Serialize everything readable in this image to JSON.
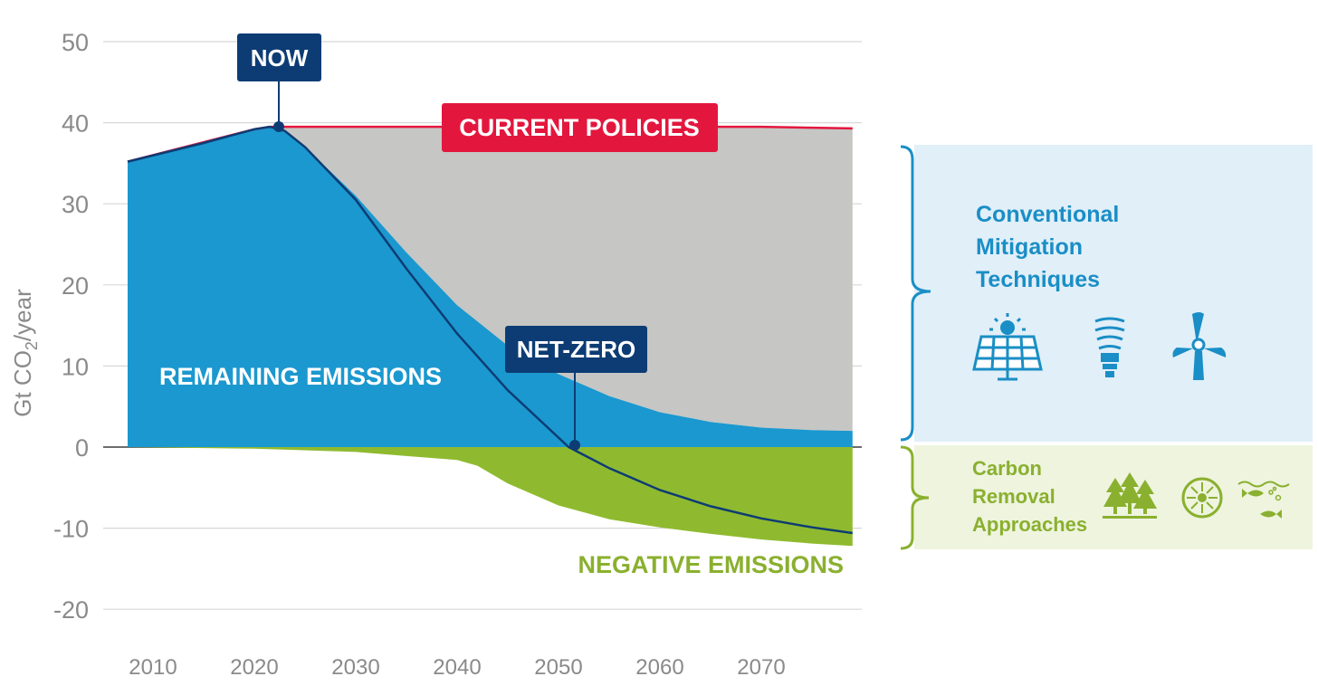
{
  "chart_data": {
    "type": "area",
    "ylabel": "Gt CO2/year",
    "ylabel_parts": {
      "main": "Gt CO",
      "sub": "2",
      "tail": "/year"
    },
    "ylim": [
      -20,
      50
    ],
    "xlim": [
      2005,
      2080
    ],
    "yticks": [
      "50",
      "40",
      "30",
      "20",
      "10",
      "0",
      "-10",
      "-20"
    ],
    "ytick_values": [
      50,
      40,
      30,
      20,
      10,
      0,
      -10,
      -20
    ],
    "xticks": [
      "2010",
      "2020",
      "2030",
      "2040",
      "2050",
      "2060",
      "2070"
    ],
    "xtick_values": [
      2010,
      2020,
      2030,
      2040,
      2050,
      2060,
      2070
    ],
    "grid": true,
    "series": [
      {
        "name": "CURRENT POLICIES",
        "color": "#e3173e",
        "x": [
          2007.5,
          2020,
          2021.5,
          2030,
          2040,
          2050,
          2060,
          2070,
          2079
        ],
        "values": [
          35.2,
          39.2,
          39.5,
          39.5,
          39.5,
          39.5,
          39.5,
          39.5,
          39.3
        ]
      },
      {
        "name": "REMAINING EMISSIONS",
        "color": "#1b98cf",
        "x": [
          2007.5,
          2015,
          2020,
          2021.5,
          2023,
          2025,
          2030,
          2035,
          2040,
          2045,
          2050,
          2055,
          2060,
          2065,
          2070,
          2075,
          2079
        ],
        "values": [
          35.2,
          37.5,
          39.2,
          39.5,
          39.0,
          37.0,
          31.0,
          24.0,
          17.5,
          12.5,
          9.0,
          6.3,
          4.3,
          3.1,
          2.4,
          2.1,
          2.0
        ]
      },
      {
        "name": "NEGATIVE EMISSIONS",
        "color": "#8fba2f",
        "x": [
          2007.5,
          2020,
          2030,
          2035,
          2040,
          2042,
          2045,
          2050,
          2055,
          2060,
          2065,
          2070,
          2075,
          2079
        ],
        "values": [
          0,
          -0.2,
          -0.6,
          -1.1,
          -1.6,
          -2.3,
          -4.5,
          -7.2,
          -8.9,
          -9.9,
          -10.7,
          -11.4,
          -11.9,
          -12.2
        ]
      },
      {
        "name": "Net emissions",
        "color": "#0d3c74",
        "x": [
          2007.5,
          2015,
          2020,
          2021.5,
          2023,
          2025,
          2030,
          2035,
          2040,
          2045,
          2051,
          2055,
          2060,
          2065,
          2070,
          2075,
          2079
        ],
        "values": [
          35.2,
          37.5,
          39.2,
          39.5,
          39.0,
          37.0,
          30.5,
          22.0,
          14.0,
          7.0,
          0,
          -2.6,
          -5.3,
          -7.3,
          -8.8,
          -9.9,
          -10.6
        ]
      }
    ],
    "annotations": [
      {
        "text": "NOW",
        "x": 2021.5,
        "y": 39.5
      },
      {
        "text": "NET-ZERO",
        "x": 2051,
        "y": 0
      }
    ]
  },
  "labels": {
    "now": "NOW",
    "net_zero": "NET-ZERO",
    "current_policies": "CURRENT POLICIES",
    "remaining": "REMAINING EMISSIONS",
    "negative": "NEGATIVE EMISSIONS"
  },
  "colors": {
    "gap_gray": "#c6c6c4",
    "navy": "#0d3c74",
    "blue_panel": "#e1eff8",
    "green_panel": "#eef4de",
    "blue_text": "#1a8ec6",
    "green_text": "#8ab02f",
    "grid": "#d8d8d8"
  },
  "panels": {
    "conventional": {
      "lines": [
        "Conventional",
        "Mitigation",
        "Techniques"
      ],
      "icons": [
        "solar-panel-icon",
        "light-bulb-icon",
        "wind-turbine-icon"
      ]
    },
    "carbon_removal": {
      "lines": [
        "Carbon",
        "Removal",
        "Approaches"
      ],
      "icons": [
        "forest-icon",
        "mineral-disk-icon",
        "ocean-fish-icon"
      ]
    }
  }
}
